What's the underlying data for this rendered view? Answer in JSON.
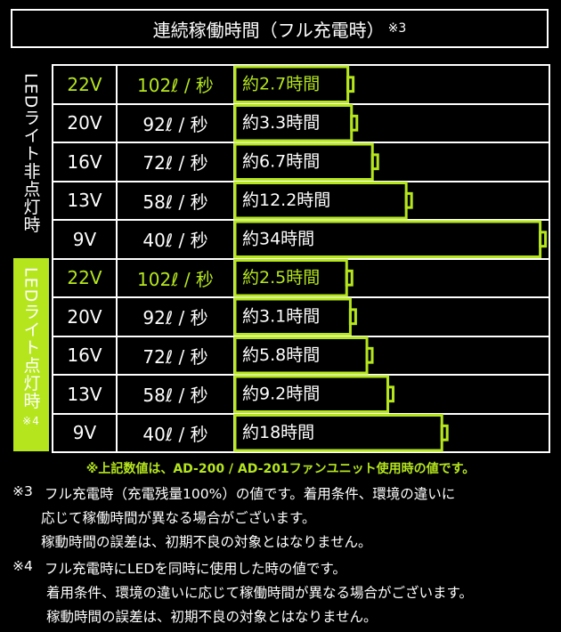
{
  "title": "連続稼働時間（フル充電時）",
  "title_note": "※3",
  "groups": [
    {
      "label": "LEDライト非点灯時",
      "rows": [
        {
          "voltage": "22V",
          "flow": "102ℓ / 秒",
          "runtime": {
            "value": 2.7,
            "label": "約2.7時間"
          }
        },
        {
          "voltage": "20V",
          "flow": "92ℓ / 秒",
          "runtime": {
            "value": 3.3,
            "label": "約3.3時間"
          }
        },
        {
          "voltage": "16V",
          "flow": "72ℓ / 秒",
          "runtime": {
            "value": 6.7,
            "label": "約6.7時間"
          }
        },
        {
          "voltage": "13V",
          "flow": "58ℓ / 秒",
          "runtime": {
            "value": 12.2,
            "label": "約12.2時間"
          }
        },
        {
          "voltage": "9V",
          "flow": "40ℓ / 秒",
          "runtime": {
            "value": 34,
            "label": "約34時間"
          }
        }
      ]
    },
    {
      "label": "LEDライト点灯時",
      "note": "※4",
      "rows": [
        {
          "voltage": "22V",
          "flow": "102ℓ / 秒",
          "runtime": {
            "value": 2.5,
            "label": "約2.5時間"
          }
        },
        {
          "voltage": "20V",
          "flow": "92ℓ / 秒",
          "runtime": {
            "value": 3.1,
            "label": "約3.1時間"
          }
        },
        {
          "voltage": "16V",
          "flow": "72ℓ / 秒",
          "runtime": {
            "value": 5.8,
            "label": "約5.8時間"
          }
        },
        {
          "voltage": "13V",
          "flow": "58ℓ / 秒",
          "runtime": {
            "value": 9.2,
            "label": "約9.2時間"
          }
        },
        {
          "voltage": "9V",
          "flow": "40ℓ / 秒",
          "runtime": {
            "value": 18,
            "label": "約18時間"
          }
        }
      ]
    }
  ],
  "footnote": "※上記数値は、AD-200 / AD-201ファンユニット使用時の値です。",
  "notes": [
    {
      "mark": "※3",
      "lines": [
        "フル充電時（充電残量100%）の値です。着用条件、環境の違いに",
        "応じて稼働時間が異なる場合がございます。",
        "稼動時間の誤差は、初期不良の対象とはなりません。"
      ]
    },
    {
      "mark": "※4",
      "lines": [
        "フル充電時にLEDを同時に使用した時の値です。",
        "着用条件、環境の違いに応じて稼働時間が異なる場合がございます。",
        "稼動時間の誤差は、初期不良の対象とはなりません。"
      ]
    }
  ]
}
